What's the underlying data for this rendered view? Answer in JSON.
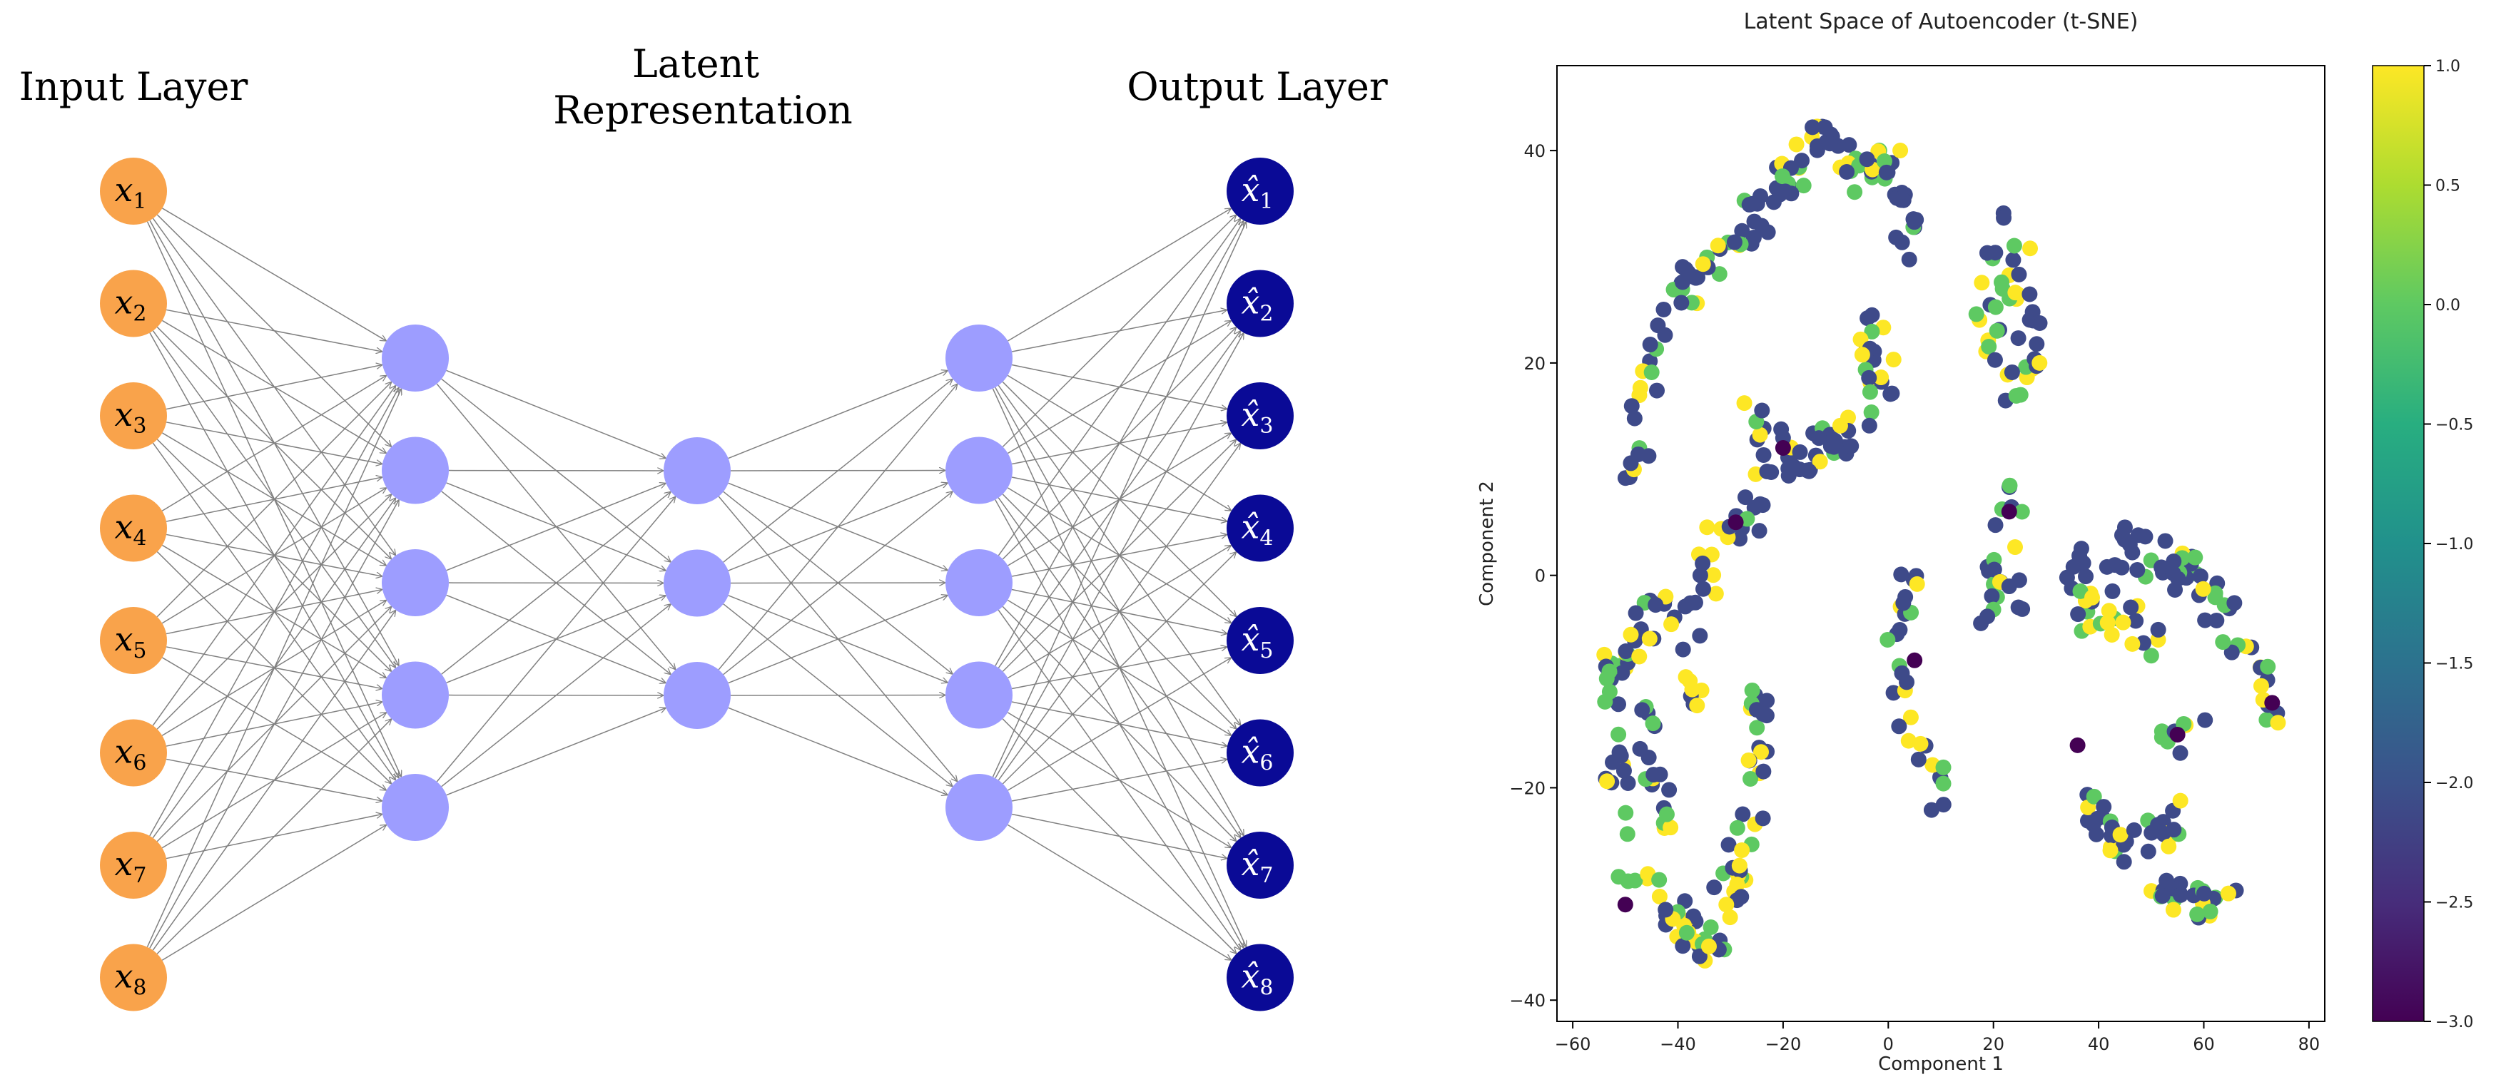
{
  "diagram": {
    "layer_titles": {
      "input": "Input Layer",
      "latent_line1": "Latent",
      "latent_line2": "Representation",
      "output": "Output Layer"
    },
    "input_nodes": [
      "x1",
      "x2",
      "x3",
      "x4",
      "x5",
      "x6",
      "x7",
      "x8"
    ],
    "output_nodes": [
      "x̂1",
      "x̂2",
      "x̂3",
      "x̂4",
      "x̂5",
      "x̂6",
      "x̂7",
      "x̂8"
    ],
    "encoder_hidden_count": 5,
    "latent_count": 3,
    "decoder_hidden_count": 5,
    "colors": {
      "input": "#f9a34b",
      "hidden": "#9d9dff",
      "output": "#0a0a96",
      "edge": "#808080"
    }
  },
  "chart_data": {
    "type": "scatter",
    "title": "Latent Space of Autoencoder (t-SNE)",
    "xlabel": "Component 1",
    "ylabel": "Component 2",
    "xlim": [
      -63,
      83
    ],
    "ylim": [
      -42,
      48
    ],
    "xticks": [
      -60,
      -40,
      -20,
      0,
      20,
      40,
      60,
      80
    ],
    "yticks": [
      -40,
      -20,
      0,
      20,
      40
    ],
    "grid": false,
    "colormap": "viridis",
    "colorbar": {
      "min": -3.0,
      "max": 1.0,
      "ticks": [
        1.0,
        0.5,
        0.0,
        -0.5,
        -1.0,
        -1.5,
        -2.0,
        -2.5,
        -3.0
      ],
      "tick_labels": [
        "1.0",
        "0.5",
        "0.0",
        "−0.5",
        "−1.0",
        "−1.5",
        "−2.0",
        "−2.5",
        "−3.0"
      ]
    },
    "series_note": "",
    "clusters": [
      {
        "path": [
          [
            -48,
            7
          ],
          [
            -46,
            16
          ],
          [
            -44,
            22
          ],
          [
            -40,
            26
          ],
          [
            -35,
            29
          ],
          [
            -30,
            31
          ],
          [
            -26,
            33
          ],
          [
            -22,
            35
          ],
          [
            -18,
            38
          ],
          [
            -15,
            42
          ]
        ],
        "count": 75,
        "mix": [
          0.62,
          0.22,
          0.16
        ]
      },
      {
        "path": [
          [
            -15,
            42
          ],
          [
            -10,
            40
          ],
          [
            -5,
            38
          ],
          [
            0,
            39
          ],
          [
            3,
            37
          ],
          [
            4,
            33
          ],
          [
            5,
            30
          ]
        ],
        "count": 45,
        "mix": [
          0.62,
          0.2,
          0.18
        ]
      },
      {
        "path": [
          [
            -5,
            26
          ],
          [
            -3,
            22
          ],
          [
            -1,
            19
          ],
          [
            0,
            16
          ]
        ],
        "count": 16,
        "mix": [
          0.55,
          0.15,
          0.3
        ]
      },
      {
        "path": [
          [
            -26,
            16
          ],
          [
            -22,
            12
          ],
          [
            -17,
            11
          ],
          [
            -12,
            12
          ],
          [
            -8,
            13
          ],
          [
            -4,
            15
          ],
          [
            -1,
            17
          ]
        ],
        "count": 38,
        "mix": [
          0.7,
          0.15,
          0.15
        ]
      },
      {
        "path": [
          [
            -30,
            5
          ],
          [
            -26,
            6
          ],
          [
            -22,
            9
          ],
          [
            -20,
            11
          ]
        ],
        "count": 18,
        "mix": [
          0.6,
          0.15,
          0.25
        ]
      },
      {
        "path": [
          [
            -31,
            5
          ],
          [
            -34,
            0
          ],
          [
            -38,
            -2
          ],
          [
            -42,
            -4
          ],
          [
            -47,
            -5
          ],
          [
            -51,
            -8
          ]
        ],
        "count": 30,
        "mix": [
          0.55,
          0.2,
          0.25
        ]
      },
      {
        "path": [
          [
            -52,
            -8
          ],
          [
            -52,
            -15
          ],
          [
            -51,
            -22
          ],
          [
            -50,
            -27
          ],
          [
            -50,
            -31
          ]
        ],
        "count": 28,
        "mix": [
          0.55,
          0.3,
          0.15
        ]
      },
      {
        "path": [
          [
            -47,
            -12
          ],
          [
            -45,
            -18
          ],
          [
            -43,
            -22
          ],
          [
            -41,
            -24
          ]
        ],
        "count": 18,
        "mix": [
          0.5,
          0.3,
          0.2
        ]
      },
      {
        "path": [
          [
            -46,
            -29
          ],
          [
            -42,
            -31
          ],
          [
            -38,
            -33
          ],
          [
            -35,
            -36
          ],
          [
            -33,
            -34
          ],
          [
            -30,
            -30
          ]
        ],
        "count": 40,
        "mix": [
          0.35,
          0.2,
          0.45
        ]
      },
      {
        "path": [
          [
            -30,
            -30
          ],
          [
            -28,
            -26
          ],
          [
            -26,
            -22
          ],
          [
            -25,
            -17
          ],
          [
            -25,
            -12
          ],
          [
            -27,
            -9
          ]
        ],
        "count": 30,
        "mix": [
          0.5,
          0.2,
          0.3
        ]
      },
      {
        "path": [
          [
            -40,
            -4
          ],
          [
            -37,
            -8
          ],
          [
            -35,
            -12
          ]
        ],
        "count": 10,
        "mix": [
          0.4,
          0.2,
          0.4
        ]
      },
      {
        "path": [
          [
            19,
            31
          ],
          [
            22,
            33
          ],
          [
            25,
            30
          ],
          [
            26,
            26
          ],
          [
            27,
            22
          ],
          [
            26,
            19
          ],
          [
            23,
            17
          ]
        ],
        "count": 32,
        "mix": [
          0.55,
          0.25,
          0.2
        ]
      },
      {
        "path": [
          [
            20,
            28
          ],
          [
            19,
            25
          ],
          [
            20,
            22
          ],
          [
            21,
            19
          ]
        ],
        "count": 14,
        "mix": [
          0.3,
          0.3,
          0.4
        ]
      },
      {
        "path": [
          [
            24,
            10
          ],
          [
            23,
            6
          ],
          [
            22,
            3
          ],
          [
            21,
            0
          ],
          [
            20,
            -2
          ]
        ],
        "count": 14,
        "mix": [
          0.45,
          0.4,
          0.15
        ]
      },
      {
        "path": [
          [
            17,
            -3
          ],
          [
            19,
            -2
          ],
          [
            22,
            -1
          ],
          [
            25,
            0
          ],
          [
            26,
            -2
          ]
        ],
        "count": 10,
        "mix": [
          0.45,
          0.4,
          0.15
        ]
      },
      {
        "path": [
          [
            4,
            0
          ],
          [
            2,
            -4
          ],
          [
            0,
            -7
          ],
          [
            1,
            -10
          ],
          [
            3,
            -13
          ],
          [
            5,
            -16
          ],
          [
            8,
            -19
          ],
          [
            10,
            -21
          ]
        ],
        "count": 30,
        "mix": [
          0.55,
          0.2,
          0.25
        ]
      },
      {
        "path": [
          [
            35,
            0
          ],
          [
            40,
            1
          ],
          [
            45,
            3
          ],
          [
            50,
            2
          ],
          [
            55,
            1
          ],
          [
            58,
            0
          ]
        ],
        "count": 36,
        "mix": [
          0.7,
          0.18,
          0.12
        ]
      },
      {
        "path": [
          [
            58,
            0
          ],
          [
            62,
            -2
          ],
          [
            66,
            -5
          ],
          [
            70,
            -8
          ],
          [
            72,
            -12
          ],
          [
            73,
            -15
          ]
        ],
        "count": 28,
        "mix": [
          0.6,
          0.22,
          0.18
        ]
      },
      {
        "path": [
          [
            36,
            -4
          ],
          [
            40,
            -3
          ],
          [
            45,
            -4
          ],
          [
            50,
            -5
          ],
          [
            52,
            -7
          ]
        ],
        "count": 22,
        "mix": [
          0.45,
          0.3,
          0.25
        ]
      },
      {
        "path": [
          [
            35,
            -18
          ],
          [
            38,
            -22
          ],
          [
            41,
            -24
          ],
          [
            45,
            -26
          ],
          [
            50,
            -25
          ],
          [
            55,
            -23
          ],
          [
            58,
            -25
          ]
        ],
        "count": 34,
        "mix": [
          0.72,
          0.18,
          0.1
        ]
      },
      {
        "path": [
          [
            47,
            -28
          ],
          [
            52,
            -29
          ],
          [
            56,
            -30
          ],
          [
            60,
            -31
          ],
          [
            63,
            -30
          ],
          [
            65,
            -28
          ]
        ],
        "count": 24,
        "mix": [
          0.55,
          0.2,
          0.25
        ]
      },
      {
        "path": [
          [
            52,
            -16
          ],
          [
            54,
            -15
          ],
          [
            56,
            -14
          ],
          [
            58,
            -14
          ]
        ],
        "count": 8,
        "mix": [
          0.3,
          0.3,
          0.4
        ]
      }
    ],
    "outliers": [
      [
        -50,
        -31
      ],
      [
        -29,
        5
      ],
      [
        -20,
        12
      ],
      [
        5,
        -8
      ],
      [
        23,
        6
      ],
      [
        36,
        -16
      ],
      [
        73,
        -12
      ],
      [
        55,
        -15
      ]
    ]
  }
}
